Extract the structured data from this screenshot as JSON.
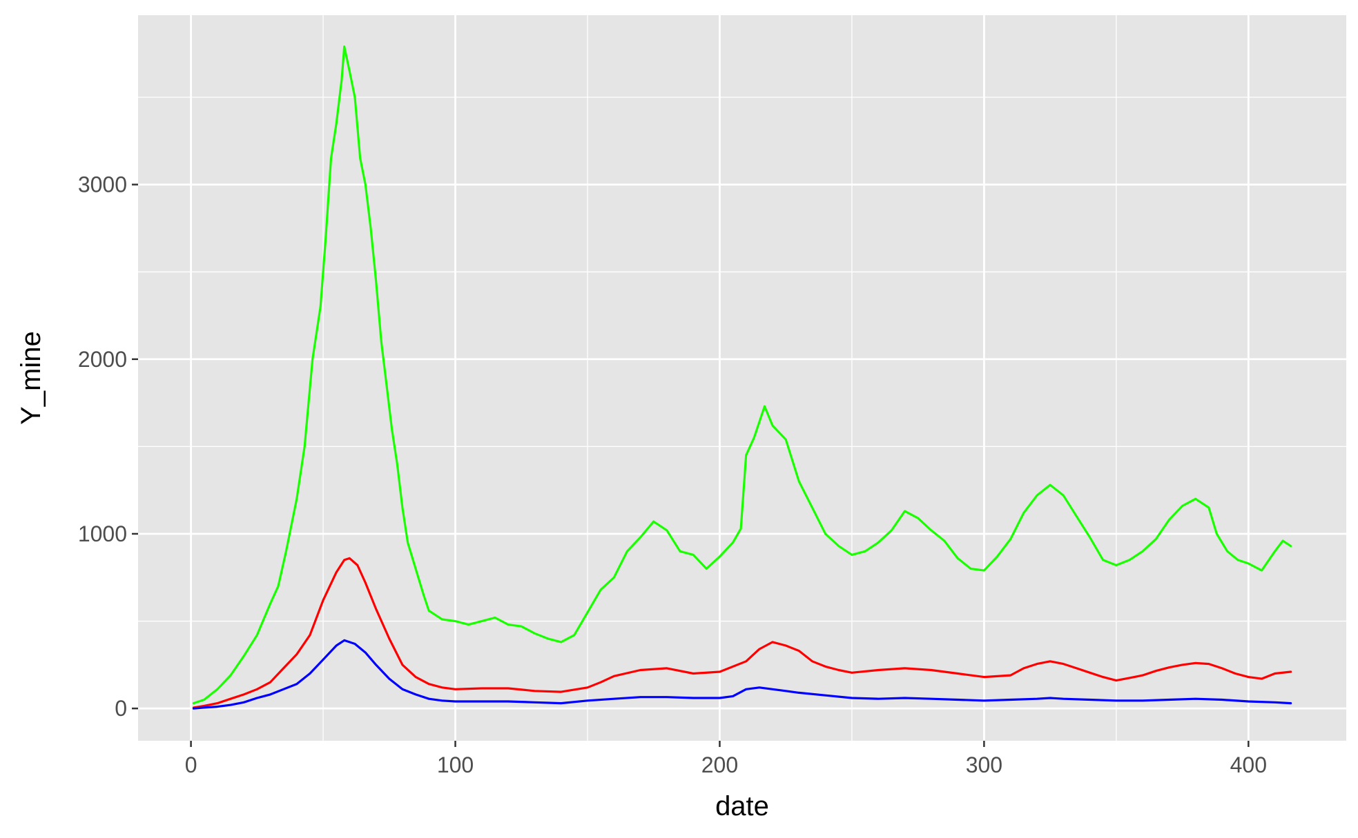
{
  "chart_data": {
    "type": "line",
    "title": "",
    "xlabel": "date",
    "ylabel": "Y_mine",
    "xlim": [
      -20,
      437
    ],
    "ylim": [
      -185,
      3970
    ],
    "x_ticks": [
      0,
      100,
      200,
      300,
      400
    ],
    "y_ticks": [
      0,
      1000,
      2000,
      3000
    ],
    "x_minor_ticks": [
      50,
      150,
      250,
      350
    ],
    "y_minor_ticks": [
      500,
      1500,
      2500,
      3500
    ],
    "grid": true,
    "legend": "none",
    "background": "#e5e5e5",
    "gridline_color": "#ffffff",
    "series": [
      {
        "color": "#19ff00",
        "points": [
          [
            1,
            30
          ],
          [
            5,
            50
          ],
          [
            10,
            110
          ],
          [
            15,
            190
          ],
          [
            20,
            300
          ],
          [
            25,
            420
          ],
          [
            30,
            600
          ],
          [
            33,
            700
          ],
          [
            36,
            900
          ],
          [
            40,
            1200
          ],
          [
            43,
            1500
          ],
          [
            46,
            2000
          ],
          [
            49,
            2300
          ],
          [
            51,
            2700
          ],
          [
            53,
            3150
          ],
          [
            55,
            3350
          ],
          [
            57,
            3600
          ],
          [
            58,
            3790
          ],
          [
            60,
            3650
          ],
          [
            62,
            3500
          ],
          [
            64,
            3150
          ],
          [
            66,
            3000
          ],
          [
            68,
            2750
          ],
          [
            70,
            2450
          ],
          [
            72,
            2100
          ],
          [
            74,
            1850
          ],
          [
            76,
            1600
          ],
          [
            78,
            1400
          ],
          [
            80,
            1150
          ],
          [
            82,
            950
          ],
          [
            85,
            800
          ],
          [
            88,
            650
          ],
          [
            90,
            560
          ],
          [
            95,
            510
          ],
          [
            100,
            500
          ],
          [
            105,
            480
          ],
          [
            110,
            500
          ],
          [
            115,
            520
          ],
          [
            120,
            480
          ],
          [
            125,
            470
          ],
          [
            130,
            430
          ],
          [
            135,
            400
          ],
          [
            140,
            380
          ],
          [
            145,
            420
          ],
          [
            150,
            550
          ],
          [
            155,
            680
          ],
          [
            160,
            750
          ],
          [
            165,
            900
          ],
          [
            170,
            980
          ],
          [
            175,
            1070
          ],
          [
            180,
            1020
          ],
          [
            185,
            900
          ],
          [
            190,
            880
          ],
          [
            195,
            800
          ],
          [
            200,
            870
          ],
          [
            205,
            950
          ],
          [
            208,
            1030
          ],
          [
            210,
            1450
          ],
          [
            213,
            1550
          ],
          [
            217,
            1730
          ],
          [
            220,
            1620
          ],
          [
            225,
            1540
          ],
          [
            230,
            1300
          ],
          [
            235,
            1150
          ],
          [
            240,
            1000
          ],
          [
            245,
            930
          ],
          [
            250,
            880
          ],
          [
            255,
            900
          ],
          [
            260,
            950
          ],
          [
            265,
            1020
          ],
          [
            270,
            1130
          ],
          [
            275,
            1090
          ],
          [
            280,
            1020
          ],
          [
            285,
            960
          ],
          [
            290,
            860
          ],
          [
            295,
            800
          ],
          [
            300,
            790
          ],
          [
            305,
            870
          ],
          [
            310,
            970
          ],
          [
            315,
            1120
          ],
          [
            320,
            1220
          ],
          [
            325,
            1280
          ],
          [
            330,
            1220
          ],
          [
            335,
            1100
          ],
          [
            340,
            980
          ],
          [
            345,
            850
          ],
          [
            350,
            820
          ],
          [
            355,
            850
          ],
          [
            360,
            900
          ],
          [
            365,
            970
          ],
          [
            370,
            1080
          ],
          [
            375,
            1160
          ],
          [
            380,
            1200
          ],
          [
            385,
            1150
          ],
          [
            388,
            1000
          ],
          [
            392,
            900
          ],
          [
            396,
            850
          ],
          [
            400,
            830
          ],
          [
            405,
            790
          ],
          [
            410,
            900
          ],
          [
            413,
            960
          ],
          [
            416,
            930
          ]
        ]
      },
      {
        "color": "#ff0000",
        "points": [
          [
            1,
            5
          ],
          [
            5,
            15
          ],
          [
            10,
            30
          ],
          [
            15,
            55
          ],
          [
            20,
            80
          ],
          [
            25,
            110
          ],
          [
            30,
            150
          ],
          [
            35,
            230
          ],
          [
            40,
            310
          ],
          [
            45,
            420
          ],
          [
            50,
            620
          ],
          [
            55,
            780
          ],
          [
            58,
            850
          ],
          [
            60,
            860
          ],
          [
            63,
            820
          ],
          [
            66,
            720
          ],
          [
            70,
            570
          ],
          [
            75,
            400
          ],
          [
            80,
            250
          ],
          [
            85,
            180
          ],
          [
            90,
            140
          ],
          [
            95,
            120
          ],
          [
            100,
            110
          ],
          [
            110,
            115
          ],
          [
            120,
            115
          ],
          [
            130,
            100
          ],
          [
            140,
            95
          ],
          [
            150,
            120
          ],
          [
            155,
            150
          ],
          [
            160,
            185
          ],
          [
            170,
            220
          ],
          [
            180,
            230
          ],
          [
            190,
            200
          ],
          [
            200,
            210
          ],
          [
            210,
            270
          ],
          [
            215,
            340
          ],
          [
            220,
            380
          ],
          [
            225,
            360
          ],
          [
            230,
            330
          ],
          [
            235,
            270
          ],
          [
            240,
            240
          ],
          [
            245,
            220
          ],
          [
            250,
            205
          ],
          [
            260,
            220
          ],
          [
            270,
            230
          ],
          [
            280,
            220
          ],
          [
            290,
            200
          ],
          [
            300,
            180
          ],
          [
            310,
            190
          ],
          [
            315,
            230
          ],
          [
            320,
            255
          ],
          [
            325,
            270
          ],
          [
            330,
            255
          ],
          [
            335,
            230
          ],
          [
            340,
            205
          ],
          [
            345,
            180
          ],
          [
            350,
            160
          ],
          [
            355,
            175
          ],
          [
            360,
            190
          ],
          [
            365,
            215
          ],
          [
            370,
            235
          ],
          [
            375,
            250
          ],
          [
            380,
            260
          ],
          [
            385,
            255
          ],
          [
            390,
            230
          ],
          [
            395,
            200
          ],
          [
            400,
            180
          ],
          [
            405,
            170
          ],
          [
            410,
            200
          ],
          [
            416,
            210
          ]
        ]
      },
      {
        "color": "#0000ff",
        "points": [
          [
            1,
            0
          ],
          [
            5,
            5
          ],
          [
            10,
            10
          ],
          [
            15,
            20
          ],
          [
            20,
            35
          ],
          [
            25,
            60
          ],
          [
            30,
            80
          ],
          [
            35,
            110
          ],
          [
            40,
            140
          ],
          [
            45,
            200
          ],
          [
            50,
            280
          ],
          [
            55,
            360
          ],
          [
            58,
            390
          ],
          [
            62,
            370
          ],
          [
            66,
            320
          ],
          [
            70,
            250
          ],
          [
            75,
            170
          ],
          [
            80,
            110
          ],
          [
            85,
            80
          ],
          [
            90,
            55
          ],
          [
            95,
            45
          ],
          [
            100,
            40
          ],
          [
            110,
            40
          ],
          [
            120,
            40
          ],
          [
            130,
            35
          ],
          [
            140,
            30
          ],
          [
            150,
            45
          ],
          [
            160,
            55
          ],
          [
            170,
            65
          ],
          [
            180,
            65
          ],
          [
            190,
            60
          ],
          [
            200,
            60
          ],
          [
            205,
            70
          ],
          [
            210,
            110
          ],
          [
            215,
            120
          ],
          [
            220,
            110
          ],
          [
            225,
            100
          ],
          [
            230,
            90
          ],
          [
            240,
            75
          ],
          [
            250,
            60
          ],
          [
            260,
            55
          ],
          [
            270,
            60
          ],
          [
            280,
            55
          ],
          [
            290,
            50
          ],
          [
            300,
            45
          ],
          [
            310,
            50
          ],
          [
            320,
            55
          ],
          [
            325,
            60
          ],
          [
            330,
            55
          ],
          [
            340,
            50
          ],
          [
            350,
            45
          ],
          [
            360,
            45
          ],
          [
            370,
            50
          ],
          [
            380,
            55
          ],
          [
            390,
            50
          ],
          [
            400,
            40
          ],
          [
            410,
            35
          ],
          [
            416,
            30
          ]
        ]
      }
    ]
  }
}
